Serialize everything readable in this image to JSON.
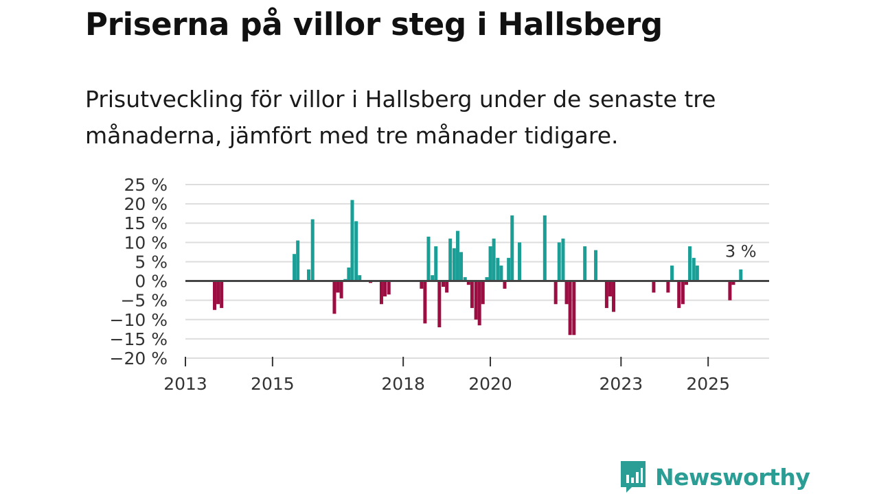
{
  "title": "Priserna på villor steg i Hallsberg",
  "subtitle": "Prisutveckling för villor i Hallsberg under de senaste tre månaderna, jämfört med tre månader tidigare.",
  "brand": {
    "name": "Newsworthy",
    "color": "#2a9d94"
  },
  "colors": {
    "positive": "#1a9e96",
    "negative": "#9b0e42",
    "grid": "#dddddd",
    "zero_line": "#444444"
  },
  "chart_data": {
    "type": "bar",
    "title": "Priserna på villor steg i Hallsberg",
    "xlabel": "",
    "ylabel": "",
    "ylim": [
      -20,
      25
    ],
    "ytick_values": [
      25,
      20,
      15,
      10,
      5,
      0,
      -5,
      -10,
      -15,
      -20
    ],
    "ytick_labels": [
      "25 %",
      "20 %",
      "15 %",
      "10 %",
      "5 %",
      "0 %",
      "−5 %",
      "−10 %",
      "−15 %",
      "−20 %"
    ],
    "xlim": [
      2013.0,
      2026.4
    ],
    "xtick_values": [
      2013,
      2015,
      2018,
      2020,
      2023,
      2025
    ],
    "xtick_labels": [
      "2013",
      "2015",
      "2018",
      "2020",
      "2023",
      "2025"
    ],
    "annotation": {
      "x": 2025.75,
      "y": 3,
      "text": "3 %"
    },
    "series": [
      {
        "name": "Prisutveckling (%)",
        "points": [
          {
            "x": 2013.67,
            "y": -7.5
          },
          {
            "x": 2013.75,
            "y": -6
          },
          {
            "x": 2013.83,
            "y": -7
          },
          {
            "x": 2015.5,
            "y": 7
          },
          {
            "x": 2015.58,
            "y": 10.5
          },
          {
            "x": 2015.83,
            "y": 3
          },
          {
            "x": 2015.92,
            "y": 16
          },
          {
            "x": 2016.42,
            "y": -8.5
          },
          {
            "x": 2016.5,
            "y": -3
          },
          {
            "x": 2016.58,
            "y": -4.5
          },
          {
            "x": 2016.67,
            "y": 0.5
          },
          {
            "x": 2016.75,
            "y": 3.5
          },
          {
            "x": 2016.83,
            "y": 21
          },
          {
            "x": 2016.92,
            "y": 15.5
          },
          {
            "x": 2017.0,
            "y": 1.5
          },
          {
            "x": 2017.25,
            "y": -0.5
          },
          {
            "x": 2017.5,
            "y": -6
          },
          {
            "x": 2017.58,
            "y": -4
          },
          {
            "x": 2017.67,
            "y": -3.5
          },
          {
            "x": 2018.42,
            "y": -2
          },
          {
            "x": 2018.5,
            "y": -11
          },
          {
            "x": 2018.58,
            "y": 11.5
          },
          {
            "x": 2018.67,
            "y": 1.5
          },
          {
            "x": 2018.75,
            "y": 9
          },
          {
            "x": 2018.83,
            "y": -12
          },
          {
            "x": 2018.92,
            "y": -1.5
          },
          {
            "x": 2019.0,
            "y": -3
          },
          {
            "x": 2019.08,
            "y": 11
          },
          {
            "x": 2019.17,
            "y": 8.5
          },
          {
            "x": 2019.25,
            "y": 13
          },
          {
            "x": 2019.33,
            "y": 7.5
          },
          {
            "x": 2019.42,
            "y": 1
          },
          {
            "x": 2019.5,
            "y": -1
          },
          {
            "x": 2019.58,
            "y": -7
          },
          {
            "x": 2019.67,
            "y": -10
          },
          {
            "x": 2019.75,
            "y": -11.5
          },
          {
            "x": 2019.83,
            "y": -6
          },
          {
            "x": 2019.92,
            "y": 1
          },
          {
            "x": 2020.0,
            "y": 9
          },
          {
            "x": 2020.08,
            "y": 11
          },
          {
            "x": 2020.17,
            "y": 6
          },
          {
            "x": 2020.25,
            "y": 4
          },
          {
            "x": 2020.33,
            "y": -2
          },
          {
            "x": 2020.42,
            "y": 6
          },
          {
            "x": 2020.5,
            "y": 17
          },
          {
            "x": 2020.67,
            "y": 10
          },
          {
            "x": 2021.25,
            "y": 17
          },
          {
            "x": 2021.5,
            "y": -6
          },
          {
            "x": 2021.58,
            "y": 10
          },
          {
            "x": 2021.67,
            "y": 11
          },
          {
            "x": 2021.75,
            "y": -6
          },
          {
            "x": 2021.83,
            "y": -14
          },
          {
            "x": 2021.92,
            "y": -14
          },
          {
            "x": 2022.17,
            "y": 9
          },
          {
            "x": 2022.42,
            "y": 8
          },
          {
            "x": 2022.67,
            "y": -7
          },
          {
            "x": 2022.75,
            "y": -4
          },
          {
            "x": 2022.83,
            "y": -8
          },
          {
            "x": 2023.75,
            "y": -3
          },
          {
            "x": 2024.08,
            "y": -3
          },
          {
            "x": 2024.17,
            "y": 4
          },
          {
            "x": 2024.33,
            "y": -7
          },
          {
            "x": 2024.42,
            "y": -6
          },
          {
            "x": 2024.5,
            "y": -1
          },
          {
            "x": 2024.58,
            "y": 9
          },
          {
            "x": 2024.67,
            "y": 6
          },
          {
            "x": 2024.75,
            "y": 4
          },
          {
            "x": 2025.5,
            "y": -5
          },
          {
            "x": 2025.58,
            "y": -1
          },
          {
            "x": 2025.75,
            "y": 3
          }
        ]
      }
    ]
  }
}
